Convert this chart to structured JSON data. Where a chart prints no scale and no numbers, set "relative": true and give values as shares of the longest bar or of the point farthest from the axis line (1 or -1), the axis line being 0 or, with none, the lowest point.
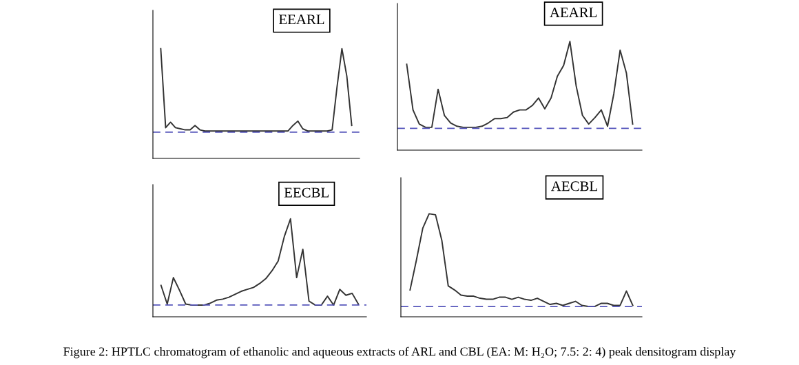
{
  "chart_data": [
    {
      "type": "line",
      "title": "EEARL",
      "relative": true,
      "categories": [
        null,
        null,
        null,
        null,
        null,
        null,
        null,
        null,
        null,
        null,
        null,
        null,
        null,
        null,
        null,
        null,
        null,
        null,
        null,
        null,
        null,
        null,
        null,
        null,
        null,
        null,
        null,
        null,
        null,
        null,
        null,
        null,
        null,
        null,
        null,
        null,
        null,
        null,
        null,
        null
      ],
      "series": [
        {
          "color": "#333333",
          "values": [
            1.0,
            0.28,
            0.33,
            0.28,
            0.27,
            0.26,
            0.26,
            0.3,
            0.26,
            0.25,
            0.25,
            0.25,
            0.25,
            0.25,
            0.25,
            0.25,
            0.25,
            0.25,
            0.25,
            0.25,
            0.25,
            0.25,
            0.25,
            0.25,
            0.25,
            0.25,
            0.25,
            0.3,
            0.34,
            0.27,
            0.25,
            0.25,
            0.25,
            0.25,
            0.25,
            0.26,
            0.65,
            1.0,
            0.75,
            0.3
          ]
        }
      ],
      "ref_lines": [
        {
          "axis": "y",
          "value": 0.24,
          "color": "#5555bb",
          "line_style": "dashed"
        }
      ]
    },
    {
      "type": "line",
      "title": "AEARL",
      "relative": true,
      "categories": [
        null,
        null,
        null,
        null,
        null,
        null,
        null,
        null,
        null,
        null,
        null,
        null,
        null,
        null,
        null,
        null,
        null,
        null,
        null,
        null,
        null,
        null,
        null,
        null,
        null,
        null,
        null,
        null,
        null,
        null,
        null,
        null,
        null,
        null,
        null,
        null,
        null
      ],
      "series": [
        {
          "color": "#333333",
          "values": [
            0.79,
            0.37,
            0.24,
            0.21,
            0.21,
            0.56,
            0.32,
            0.25,
            0.22,
            0.21,
            0.21,
            0.21,
            0.22,
            0.25,
            0.29,
            0.29,
            0.3,
            0.35,
            0.37,
            0.37,
            0.41,
            0.48,
            0.38,
            0.48,
            0.68,
            0.78,
            1.0,
            0.59,
            0.32,
            0.24,
            0.3,
            0.37,
            0.22,
            0.52,
            0.92,
            0.71,
            0.24
          ]
        }
      ],
      "ref_lines": [
        {
          "axis": "y",
          "value": 0.2,
          "color": "#5555bb",
          "line_style": "dashed"
        }
      ]
    },
    {
      "type": "line",
      "title": "EECBL",
      "relative": true,
      "categories": [
        null,
        null,
        null,
        null,
        null,
        null,
        null,
        null,
        null,
        null,
        null,
        null,
        null,
        null,
        null,
        null,
        null,
        null,
        null,
        null,
        null,
        null,
        null,
        null,
        null,
        null,
        null,
        null,
        null,
        null,
        null,
        null,
        null
      ],
      "series": [
        {
          "color": "#333333",
          "values": [
            0.32,
            0.13,
            0.4,
            0.27,
            0.13,
            0.12,
            0.12,
            0.12,
            0.14,
            0.17,
            0.18,
            0.2,
            0.23,
            0.26,
            0.28,
            0.3,
            0.34,
            0.39,
            0.47,
            0.57,
            0.82,
            1.0,
            0.4,
            0.69,
            0.16,
            0.12,
            0.12,
            0.21,
            0.12,
            0.28,
            0.22,
            0.24,
            0.13
          ]
        }
      ],
      "ref_lines": [
        {
          "axis": "y",
          "value": 0.12,
          "color": "#5555bb",
          "line_style": "dashed"
        }
      ]
    },
    {
      "type": "line",
      "title": "AECBL",
      "relative": true,
      "categories": [
        null,
        null,
        null,
        null,
        null,
        null,
        null,
        null,
        null,
        null,
        null,
        null,
        null,
        null,
        null,
        null,
        null,
        null,
        null,
        null,
        null,
        null,
        null,
        null,
        null,
        null,
        null,
        null,
        null,
        null,
        null,
        null,
        null,
        null,
        null,
        null
      ],
      "series": [
        {
          "color": "#333333",
          "values": [
            0.26,
            0.55,
            0.86,
            1.0,
            0.99,
            0.74,
            0.3,
            0.26,
            0.21,
            0.2,
            0.2,
            0.18,
            0.17,
            0.17,
            0.19,
            0.19,
            0.17,
            0.19,
            0.17,
            0.16,
            0.18,
            0.15,
            0.12,
            0.13,
            0.11,
            0.13,
            0.15,
            0.11,
            0.1,
            0.1,
            0.13,
            0.13,
            0.11,
            0.11,
            0.25,
            0.11
          ]
        }
      ],
      "ref_lines": [
        {
          "axis": "y",
          "value": 0.1,
          "color": "#5555bb",
          "line_style": "dashed"
        }
      ],
      "annotations": [
        "Figure 2: HPTLC chromatogram of ethanolic and aqueous extracts of ARL and CBL (EA: M: H₂O; 7.5: 2: 4) peak densitogram display"
      ]
    }
  ]
}
